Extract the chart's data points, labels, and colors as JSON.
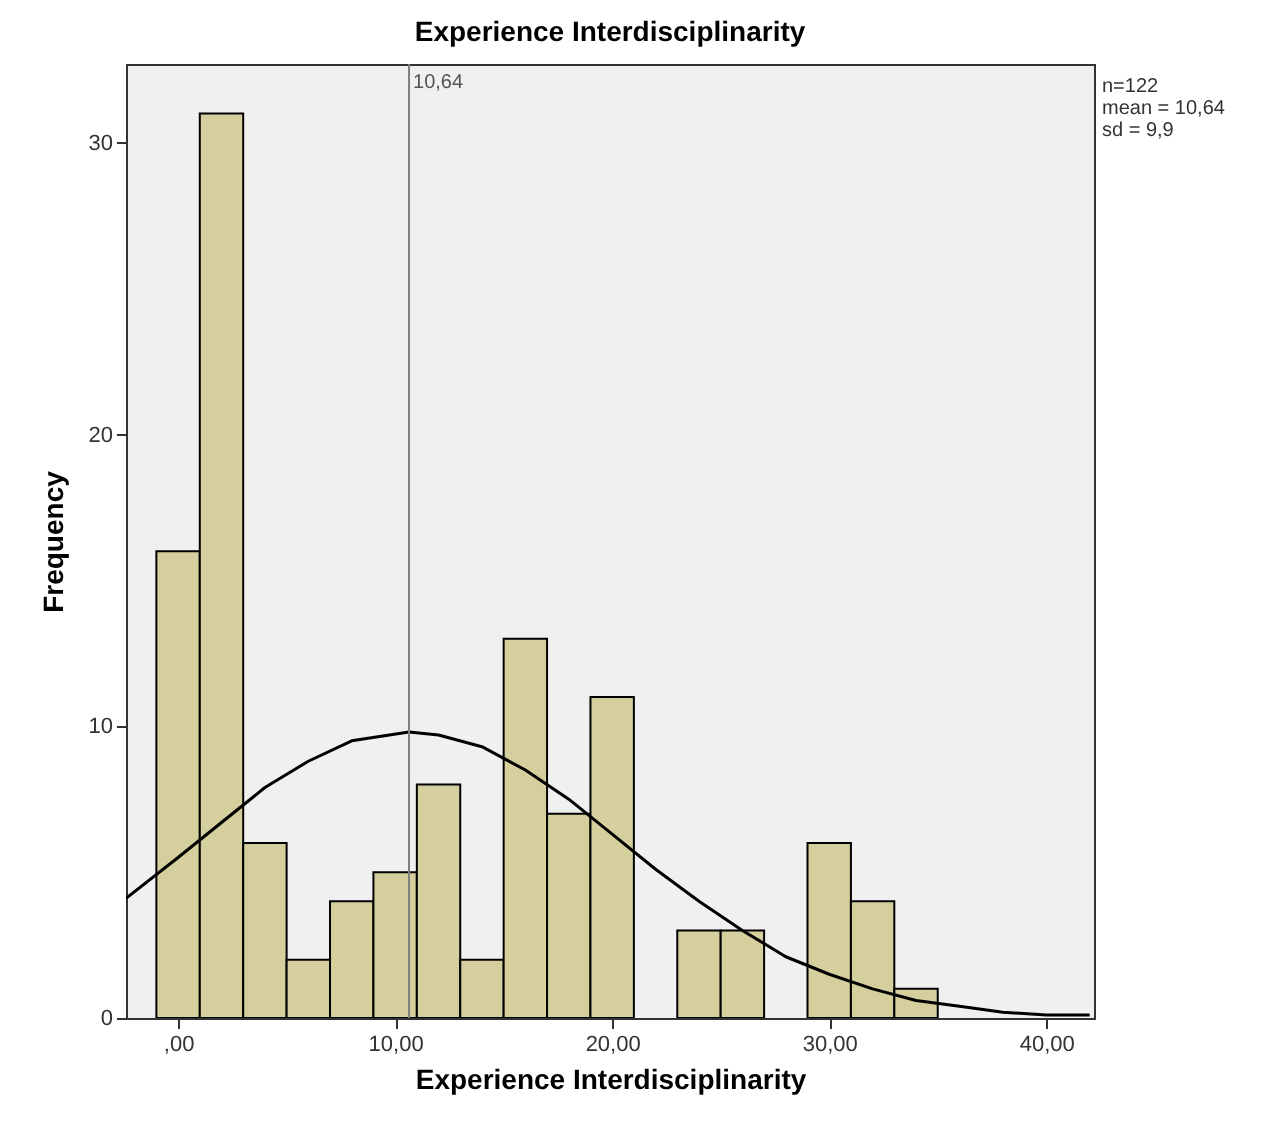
{
  "chart_data": {
    "type": "histogram",
    "title": "Experience Interdisciplinarity",
    "xlabel": "Experience Interdisciplinarity",
    "ylabel": "Frequency",
    "bins": [
      -1,
      1,
      3,
      5,
      7,
      9,
      11,
      13,
      15,
      17,
      19,
      21,
      23,
      25,
      27,
      29,
      31,
      33,
      35
    ],
    "values": [
      16,
      31,
      6,
      2,
      4,
      5,
      8,
      2,
      13,
      7,
      11,
      0,
      3,
      3,
      0,
      6,
      4,
      1
    ],
    "color": "#d4cf9c",
    "series": [
      {
        "type": "line",
        "color": "#000000",
        "x": [
          -2.4,
          0,
          2,
          4,
          6,
          8,
          10.64,
          12,
          14,
          16,
          18,
          20,
          22,
          24,
          26,
          28,
          30,
          32,
          34,
          36,
          38,
          40,
          42
        ],
        "values": [
          4.1,
          5.5,
          6.7,
          7.9,
          8.8,
          9.5,
          9.8,
          9.7,
          9.3,
          8.5,
          7.5,
          6.3,
          5.1,
          4.0,
          3.0,
          2.1,
          1.5,
          1.0,
          0.6,
          0.4,
          0.2,
          0.1,
          0.1
        ]
      }
    ],
    "xlim": [
      -2.4,
      42.2
    ],
    "ylim": [
      0,
      32.7
    ],
    "xticks": [
      {
        "value": 0,
        "label": ",00"
      },
      {
        "value": 10,
        "label": "10,00"
      },
      {
        "value": 20,
        "label": "20,00"
      },
      {
        "value": 30,
        "label": "30,00"
      },
      {
        "value": 40,
        "label": "40,00"
      }
    ],
    "yticks": [
      0,
      10,
      20,
      30
    ],
    "ref_lines": [
      {
        "axis": "x",
        "value": 10.64,
        "label": "10,64",
        "color": "#808080"
      }
    ],
    "annotations": [
      "n=122",
      "mean = 10,64",
      "sd = 9,9"
    ]
  }
}
